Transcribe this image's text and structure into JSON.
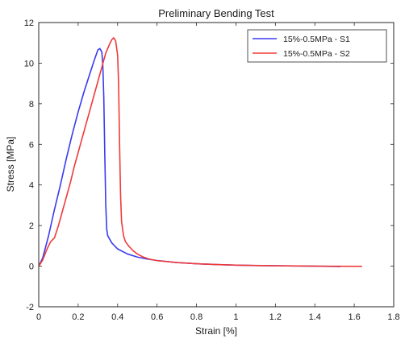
{
  "chart_data": {
    "type": "line",
    "title": "Preliminary Bending Test",
    "xlabel": "Strain [%]",
    "ylabel": "Stress [MPa]",
    "xlim": [
      0,
      1.8
    ],
    "ylim": [
      -2,
      12
    ],
    "xticks": [
      0,
      0.2,
      0.4,
      0.6,
      0.8,
      1,
      1.2,
      1.4,
      1.6,
      1.8
    ],
    "xtick_labels": [
      "0",
      "0.2",
      "0.4",
      "0.6",
      "0.8",
      "1",
      "1.2",
      "1.4",
      "1.6",
      "1.8"
    ],
    "yticks": [
      -2,
      0,
      2,
      4,
      6,
      8,
      10,
      12
    ],
    "ytick_labels": [
      "-2",
      "0",
      "2",
      "4",
      "6",
      "8",
      "10",
      "12"
    ],
    "grid": false,
    "legend_position": "top-right",
    "series": [
      {
        "name": "15%-0.5MPa - S1",
        "color": "#3a3af0",
        "x": [
          0,
          0.02,
          0.05,
          0.08,
          0.11,
          0.14,
          0.17,
          0.2,
          0.23,
          0.26,
          0.28,
          0.3,
          0.31,
          0.32,
          0.325,
          0.33,
          0.335,
          0.34,
          0.345,
          0.35,
          0.37,
          0.4,
          0.45,
          0.5,
          0.55,
          0.6,
          0.7,
          0.8,
          0.9,
          1.0,
          1.1,
          1.2,
          1.3,
          1.4,
          1.53
        ],
        "y": [
          0,
          0.4,
          1.5,
          2.8,
          4.0,
          5.3,
          6.5,
          7.6,
          8.6,
          9.5,
          10.1,
          10.65,
          10.72,
          10.55,
          9.9,
          8.3,
          5.5,
          3.0,
          1.8,
          1.5,
          1.15,
          0.85,
          0.6,
          0.45,
          0.35,
          0.28,
          0.18,
          0.12,
          0.08,
          0.05,
          0.03,
          0.02,
          0.01,
          0.0,
          -0.02
        ]
      },
      {
        "name": "15%-0.5MPa - S2",
        "color": "#f03a3a",
        "x": [
          0,
          0.02,
          0.04,
          0.06,
          0.08,
          0.1,
          0.12,
          0.14,
          0.16,
          0.18,
          0.2,
          0.22,
          0.24,
          0.26,
          0.28,
          0.3,
          0.32,
          0.34,
          0.36,
          0.37,
          0.38,
          0.39,
          0.4,
          0.405,
          0.41,
          0.415,
          0.42,
          0.43,
          0.44,
          0.46,
          0.48,
          0.5,
          0.53,
          0.56,
          0.6,
          0.7,
          0.8,
          0.9,
          1.0,
          1.2,
          1.4,
          1.64
        ],
        "y": [
          0,
          0.3,
          0.8,
          1.2,
          1.4,
          2.0,
          2.7,
          3.4,
          4.1,
          4.9,
          5.6,
          6.3,
          7.0,
          7.7,
          8.4,
          9.1,
          9.8,
          10.5,
          10.95,
          11.15,
          11.25,
          11.1,
          10.4,
          9.0,
          6.0,
          3.5,
          2.2,
          1.5,
          1.2,
          0.95,
          0.75,
          0.6,
          0.45,
          0.35,
          0.27,
          0.18,
          0.12,
          0.08,
          0.05,
          0.02,
          0.0,
          -0.01
        ]
      }
    ]
  }
}
